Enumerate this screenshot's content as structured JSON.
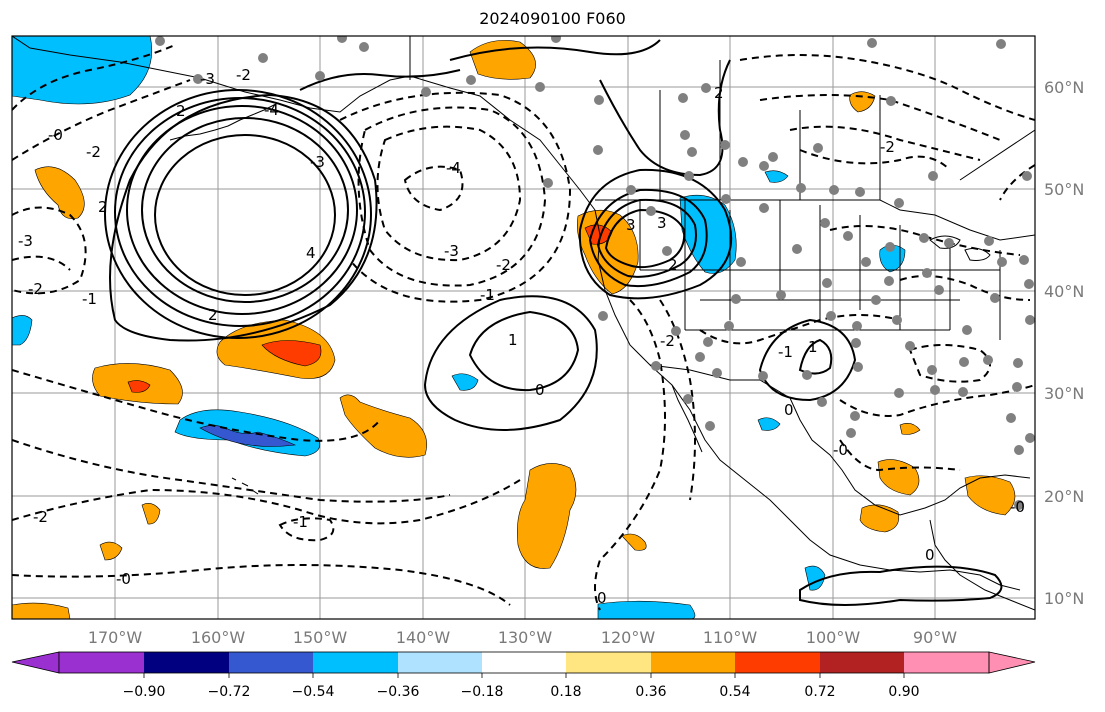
{
  "title": "2024090100 F060",
  "map": {
    "lon_labels": [
      "170°W",
      "160°W",
      "150°W",
      "140°W",
      "130°W",
      "120°W",
      "110°W",
      "100°W",
      "90°W"
    ],
    "lat_labels": [
      "60°N",
      "50°N",
      "40°N",
      "30°N",
      "20°N",
      "10°N"
    ],
    "contour_labels": [
      "-0",
      "2",
      "-2",
      "-3",
      "2",
      "-4",
      "-3",
      "-2",
      "-2",
      "-1",
      "1",
      "0",
      "-3",
      "-4",
      "3",
      "3",
      "2",
      "4",
      "2",
      "-1",
      "-2",
      "-0",
      "0",
      "-1",
      "1",
      "-3",
      "2",
      "-2",
      "-2",
      "-0",
      "0",
      "-0",
      "0",
      "-1",
      "-2"
    ]
  },
  "colorbar": {
    "tick_labels": [
      "−0.90",
      "−0.72",
      "−0.54",
      "−0.36",
      "−0.18",
      "0.18",
      "0.36",
      "0.54",
      "0.72",
      "0.90"
    ],
    "colors": [
      "#9b30d0",
      "#000080",
      "#3557cf",
      "#00bfff",
      "#aee2ff",
      "#ffffff",
      "#ffe680",
      "#ffa500",
      "#ff3c00",
      "#b22222",
      "#ff8fb3"
    ]
  }
}
